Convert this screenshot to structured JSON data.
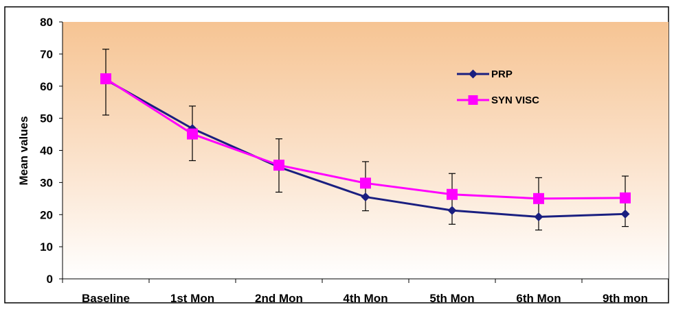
{
  "chart_data": {
    "type": "line",
    "title": "",
    "xlabel": "",
    "ylabel": "Mean values",
    "ylim": [
      0,
      80
    ],
    "yticks": [
      0,
      10,
      20,
      30,
      40,
      50,
      60,
      70,
      80
    ],
    "ytick_labels": [
      "0",
      "10",
      "20",
      "30",
      "40",
      "50",
      "60",
      "70",
      "80"
    ],
    "categories": [
      "Baseline",
      "1st Mon",
      "2nd Mon",
      "4th Mon",
      "5th Mon",
      "6th Mon",
      "9th mon"
    ],
    "grid": false,
    "legend_position": "top-right",
    "background": "gradient orange-to-white",
    "series": [
      {
        "name": "PRP",
        "color": "#1a1f80",
        "marker": "diamond",
        "values": [
          62,
          46.8,
          34.8,
          25.5,
          21.3,
          19.3,
          20.2
        ],
        "error_upper": [
          71.5,
          53.8,
          43.6,
          36.5,
          32.8,
          31.5,
          32.0
        ],
        "error_lower": [
          51,
          36.8,
          27,
          21.2,
          17,
          15.2,
          16.3
        ]
      },
      {
        "name": "SYN VISC",
        "color": "#ff00ff",
        "marker": "square",
        "values": [
          62.3,
          45.1,
          35.4,
          29.8,
          26.3,
          25,
          25.2
        ]
      }
    ]
  }
}
